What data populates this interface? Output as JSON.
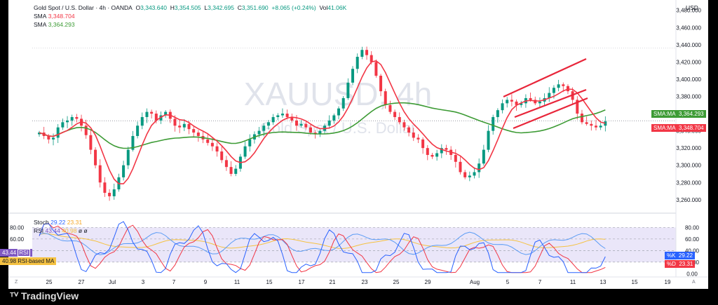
{
  "header": {
    "symbol_title": "Gold Spot / U.S. Dollar · 4h · OANDA",
    "open_label": "O",
    "open": "3,343.640",
    "high_label": "H",
    "high": "3,354.505",
    "low_label": "L",
    "low": "3,342.695",
    "close_label": "C",
    "close": "3,351.690",
    "change": "+8.065 (+0.24%)",
    "volume_label": "Vol",
    "volume": "41.06K",
    "currency": "USD",
    "sma_slow_label": "SMA",
    "sma_slow_value": "3,348.704",
    "sma_fast_label": "SMA",
    "sma_fast_value": "3,364.293"
  },
  "watermark": {
    "symbol": "XAUUSD, 4h",
    "name": "Gold Spot / U.S. Dollar"
  },
  "badges": {
    "sma_fast_tag": "SMA:MA",
    "sma_fast_value": "3,364.293",
    "sma_slow_tag": "SMA:MA",
    "sma_slow_value": "3,348.704",
    "rsi_value": "43.44",
    "rsi_tag": "RSI",
    "rsi_ma_value": "40.98",
    "rsi_ma_tag": "RSI-based MA",
    "k_tag": "%K",
    "k_value": "29.22",
    "d_tag": "%D",
    "d_value": "23.31"
  },
  "indicator_legend": {
    "stoch_label": "Stoch",
    "stoch_k": "29.22",
    "stoch_d": "23.31",
    "rsi_label": "RSI",
    "rsi_v1": "43.44",
    "rsi_v2": "40.98",
    "rsi_v3": "ø",
    "rsi_v4": "ø"
  },
  "footer": {
    "logo": "TradingView",
    "z_label": "Z",
    "a_label": "A"
  },
  "colors": {
    "up": "#089981",
    "down": "#f23645",
    "sma_slow": "#f23645",
    "sma_fast": "#3d9b35",
    "channel": "#e8263a",
    "stoch_k": "#2962ff",
    "stoch_d": "#f23645",
    "rsi": "#7e57c2",
    "rsi_ma": "#f5c242",
    "band": "#e1dbf7"
  },
  "chart_data": [
    {
      "type": "candlestick",
      "title": "Gold Spot / U.S. Dollar · 4h · OANDA",
      "y_axis": {
        "ticks": [
          "3,480.000",
          "3,460.000",
          "3,440.000",
          "3,420.000",
          "3,400.000",
          "3,380.000",
          "3,360.000",
          "3,340.000",
          "3,320.000",
          "3,300.000",
          "3,280.000",
          "3,260.000"
        ],
        "range": [
          3246,
          3492
        ]
      },
      "x_axis": {
        "ticks": [
          "25",
          "27",
          "Jul",
          "3",
          "7",
          "9",
          "11",
          "15",
          "17",
          "21",
          "23",
          "25",
          "29",
          "Aug",
          "5",
          "7",
          "11",
          "13",
          "15",
          "19"
        ]
      },
      "close_series": [
        3338,
        3334,
        3330,
        3332,
        3344,
        3350,
        3352,
        3356,
        3354,
        3346,
        3335,
        3318,
        3300,
        3280,
        3268,
        3264,
        3272,
        3286,
        3300,
        3318,
        3334,
        3346,
        3356,
        3362,
        3360,
        3352,
        3358,
        3362,
        3354,
        3346,
        3344,
        3348,
        3342,
        3338,
        3334,
        3330,
        3326,
        3322,
        3316,
        3306,
        3298,
        3290,
        3296,
        3310,
        3322,
        3330,
        3336,
        3340,
        3346,
        3350,
        3356,
        3358,
        3360,
        3356,
        3352,
        3346,
        3348,
        3344,
        3338,
        3336,
        3340,
        3346,
        3352,
        3358,
        3366,
        3378,
        3396,
        3412,
        3426,
        3434,
        3428,
        3420,
        3404,
        3386,
        3370,
        3362,
        3356,
        3350,
        3344,
        3338,
        3332,
        3330,
        3320,
        3312,
        3310,
        3314,
        3320,
        3318,
        3312,
        3304,
        3292,
        3286,
        3288,
        3292,
        3302,
        3318,
        3340,
        3356,
        3364,
        3372,
        3376,
        3374,
        3370,
        3372,
        3378,
        3376,
        3372,
        3374,
        3378,
        3384,
        3390,
        3394,
        3392,
        3386,
        3376,
        3360,
        3350,
        3348,
        3346,
        3344,
        3346,
        3351
      ],
      "sma_fast_last": 3364.293,
      "sma_slow_last": 3348.704
    },
    {
      "type": "line",
      "title": "Stoch / RSI",
      "y_axis": {
        "ticks": [
          "80.00",
          "60.00",
          "40.00",
          "20.00",
          "0.00"
        ],
        "range": [
          -2,
          95
        ]
      },
      "series": [
        {
          "name": "Stoch",
          "last": 29.22
        },
        {
          "name": "RSI",
          "last": 43.44
        }
      ]
    }
  ]
}
